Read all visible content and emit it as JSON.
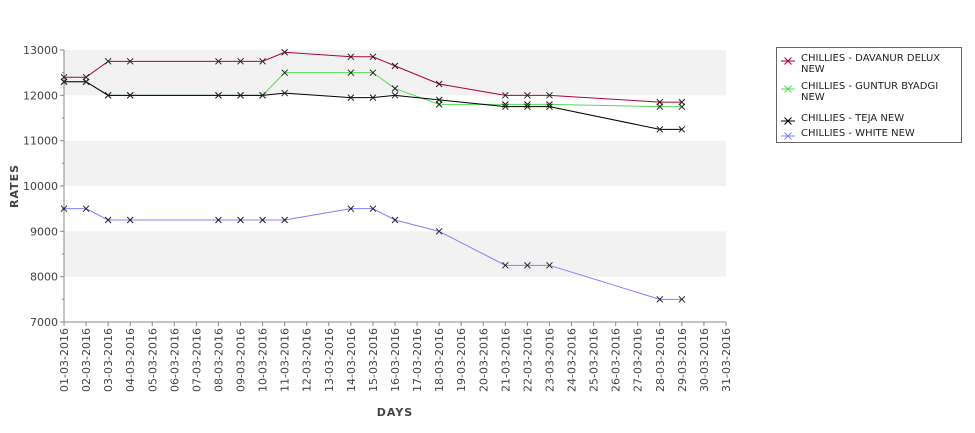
{
  "chart_data": {
    "type": "line",
    "xlabel": "DAYS",
    "ylabel": "RATES",
    "ylim": [
      7000,
      13000
    ],
    "yticks": [
      7000,
      8000,
      9000,
      10000,
      11000,
      12000,
      13000
    ],
    "categories": [
      "01-03-2016",
      "02-03-2016",
      "03-03-2016",
      "04-03-2016",
      "05-03-2016",
      "06-03-2016",
      "07-03-2016",
      "08-03-2016",
      "09-03-2016",
      "10-03-2016",
      "11-03-2016",
      "12-03-2016",
      "13-03-2016",
      "14-03-2016",
      "15-03-2016",
      "16-03-2016",
      "17-03-2016",
      "18-03-2016",
      "19-03-2016",
      "20-03-2016",
      "21-03-2016",
      "22-03-2016",
      "23-03-2016",
      "24-03-2016",
      "25-03-2016",
      "26-03-2016",
      "27-03-2016",
      "28-03-2016",
      "29-03-2016",
      "30-03-2016",
      "31-03-2016"
    ],
    "grid": "alternating horizontal bands",
    "legend_position": "right",
    "series": [
      {
        "name": "CHILLIES - DAVANUR DELUX NEW",
        "color": "#b0003a",
        "points": [
          {
            "x": "01-03-2016",
            "y": 12400
          },
          {
            "x": "02-03-2016",
            "y": 12400
          },
          {
            "x": "03-03-2016",
            "y": 12750
          },
          {
            "x": "04-03-2016",
            "y": 12750
          },
          {
            "x": "08-03-2016",
            "y": 12750
          },
          {
            "x": "09-03-2016",
            "y": 12750
          },
          {
            "x": "10-03-2016",
            "y": 12750
          },
          {
            "x": "11-03-2016",
            "y": 12950
          },
          {
            "x": "14-03-2016",
            "y": 12850
          },
          {
            "x": "15-03-2016",
            "y": 12850
          },
          {
            "x": "16-03-2016",
            "y": 12650
          },
          {
            "x": "18-03-2016",
            "y": 12250
          },
          {
            "x": "21-03-2016",
            "y": 12000
          },
          {
            "x": "22-03-2016",
            "y": 12000
          },
          {
            "x": "23-03-2016",
            "y": 12000
          },
          {
            "x": "28-03-2016",
            "y": 11850
          },
          {
            "x": "29-03-2016",
            "y": 11850
          }
        ]
      },
      {
        "name": "CHILLIES - GUNTUR BYADGI NEW",
        "color": "#55dd55",
        "points": [
          {
            "x": "01-03-2016",
            "y": 12300
          },
          {
            "x": "02-03-2016",
            "y": 12300
          },
          {
            "x": "03-03-2016",
            "y": 12000
          },
          {
            "x": "04-03-2016",
            "y": 12000
          },
          {
            "x": "08-03-2016",
            "y": 12000
          },
          {
            "x": "09-03-2016",
            "y": 12000
          },
          {
            "x": "10-03-2016",
            "y": 12000
          },
          {
            "x": "11-03-2016",
            "y": 12500
          },
          {
            "x": "14-03-2016",
            "y": 12500
          },
          {
            "x": "15-03-2016",
            "y": 12500
          },
          {
            "x": "16-03-2016",
            "y": 12150
          },
          {
            "x": "18-03-2016",
            "y": 11800
          },
          {
            "x": "21-03-2016",
            "y": 11800
          },
          {
            "x": "22-03-2016",
            "y": 11800
          },
          {
            "x": "23-03-2016",
            "y": 11800
          },
          {
            "x": "28-03-2016",
            "y": 11750
          },
          {
            "x": "29-03-2016",
            "y": 11750
          }
        ]
      },
      {
        "name": "CHILLIES - TEJA NEW",
        "color": "#000000",
        "points": [
          {
            "x": "01-03-2016",
            "y": 12300
          },
          {
            "x": "02-03-2016",
            "y": 12300
          },
          {
            "x": "03-03-2016",
            "y": 12000
          },
          {
            "x": "04-03-2016",
            "y": 12000
          },
          {
            "x": "08-03-2016",
            "y": 12000
          },
          {
            "x": "09-03-2016",
            "y": 12000
          },
          {
            "x": "10-03-2016",
            "y": 12000
          },
          {
            "x": "11-03-2016",
            "y": 12050
          },
          {
            "x": "14-03-2016",
            "y": 11950
          },
          {
            "x": "15-03-2016",
            "y": 11950
          },
          {
            "x": "16-03-2016",
            "y": 12000
          },
          {
            "x": "18-03-2016",
            "y": 11900
          },
          {
            "x": "21-03-2016",
            "y": 11750
          },
          {
            "x": "22-03-2016",
            "y": 11750
          },
          {
            "x": "23-03-2016",
            "y": 11750
          },
          {
            "x": "28-03-2016",
            "y": 11250
          },
          {
            "x": "29-03-2016",
            "y": 11250
          }
        ]
      },
      {
        "name": "CHILLIES - WHITE NEW",
        "color": "#8080ff",
        "points": [
          {
            "x": "01-03-2016",
            "y": 9500
          },
          {
            "x": "02-03-2016",
            "y": 9500
          },
          {
            "x": "03-03-2016",
            "y": 9250
          },
          {
            "x": "04-03-2016",
            "y": 9250
          },
          {
            "x": "08-03-2016",
            "y": 9250
          },
          {
            "x": "09-03-2016",
            "y": 9250
          },
          {
            "x": "10-03-2016",
            "y": 9250
          },
          {
            "x": "11-03-2016",
            "y": 9250
          },
          {
            "x": "14-03-2016",
            "y": 9500
          },
          {
            "x": "15-03-2016",
            "y": 9500
          },
          {
            "x": "16-03-2016",
            "y": 9250
          },
          {
            "x": "18-03-2016",
            "y": 9000
          },
          {
            "x": "21-03-2016",
            "y": 8250
          },
          {
            "x": "22-03-2016",
            "y": 8250
          },
          {
            "x": "23-03-2016",
            "y": 8250
          },
          {
            "x": "28-03-2016",
            "y": 7500
          },
          {
            "x": "29-03-2016",
            "y": 7500
          }
        ]
      }
    ]
  },
  "legend": {
    "items": [
      {
        "label": "CHILLIES - DAVANUR DELUX NEW",
        "color": "#b0003a"
      },
      {
        "label": "CHILLIES - GUNTUR BYADGI NEW",
        "color": "#55dd55"
      },
      {
        "label": "CHILLIES - TEJA NEW",
        "color": "#000000"
      },
      {
        "label": "CHILLIES - WHITE NEW",
        "color": "#8080ff"
      }
    ]
  },
  "colors": {
    "band": "#f2f2f2",
    "axis": "#888888"
  }
}
